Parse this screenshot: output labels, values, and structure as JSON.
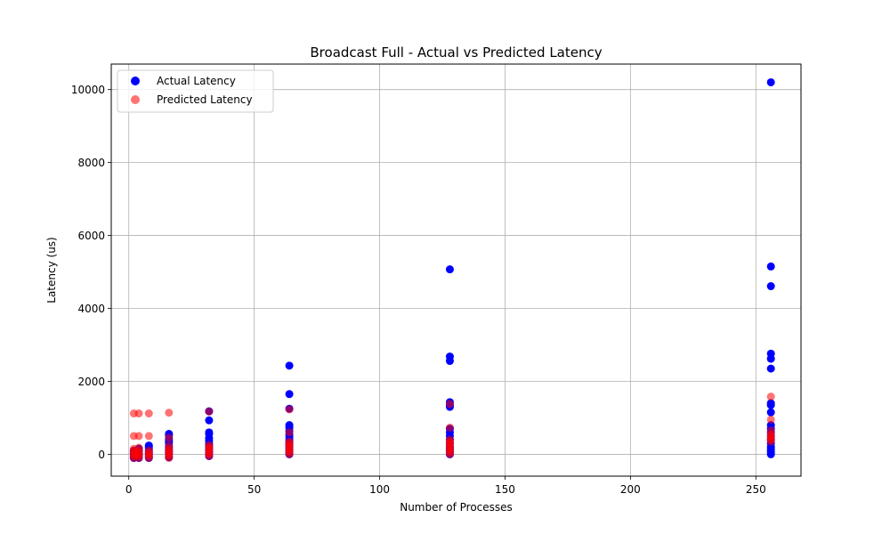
{
  "chart_data": {
    "type": "scatter",
    "title": "Broadcast Full - Actual vs Predicted Latency",
    "xlabel": "Number of Processes",
    "ylabel": "Latency (us)",
    "xlim": [
      -7,
      268
    ],
    "ylim": [
      -600,
      10700
    ],
    "xticks": [
      0,
      50,
      100,
      150,
      200,
      250
    ],
    "yticks": [
      0,
      2000,
      4000,
      6000,
      8000,
      10000
    ],
    "grid": true,
    "legend_position": "top-left",
    "series": [
      {
        "name": "Actual Latency",
        "color": "#0000ff",
        "opacity": 1.0,
        "points": [
          [
            2,
            -100
          ],
          [
            2,
            -50
          ],
          [
            2,
            0
          ],
          [
            2,
            30
          ],
          [
            2,
            60
          ],
          [
            2,
            100
          ],
          [
            4,
            -100
          ],
          [
            4,
            -50
          ],
          [
            4,
            0
          ],
          [
            4,
            50
          ],
          [
            4,
            100
          ],
          [
            4,
            150
          ],
          [
            8,
            -100
          ],
          [
            8,
            -50
          ],
          [
            8,
            0
          ],
          [
            8,
            50
          ],
          [
            8,
            100
          ],
          [
            8,
            150
          ],
          [
            8,
            200
          ],
          [
            8,
            240
          ],
          [
            16,
            -80
          ],
          [
            16,
            0
          ],
          [
            16,
            50
          ],
          [
            16,
            100
          ],
          [
            16,
            150
          ],
          [
            16,
            200
          ],
          [
            16,
            300
          ],
          [
            16,
            360
          ],
          [
            16,
            420
          ],
          [
            16,
            520
          ],
          [
            16,
            560
          ],
          [
            32,
            -50
          ],
          [
            32,
            0
          ],
          [
            32,
            50
          ],
          [
            32,
            100
          ],
          [
            32,
            150
          ],
          [
            32,
            200
          ],
          [
            32,
            250
          ],
          [
            32,
            300
          ],
          [
            32,
            380
          ],
          [
            32,
            450
          ],
          [
            32,
            560
          ],
          [
            32,
            600
          ],
          [
            32,
            930
          ],
          [
            32,
            1180
          ],
          [
            64,
            0
          ],
          [
            64,
            50
          ],
          [
            64,
            100
          ],
          [
            64,
            150
          ],
          [
            64,
            200
          ],
          [
            64,
            250
          ],
          [
            64,
            300
          ],
          [
            64,
            350
          ],
          [
            64,
            420
          ],
          [
            64,
            500
          ],
          [
            64,
            550
          ],
          [
            64,
            640
          ],
          [
            64,
            730
          ],
          [
            64,
            800
          ],
          [
            64,
            1250
          ],
          [
            64,
            1650
          ],
          [
            64,
            2430
          ],
          [
            128,
            0
          ],
          [
            128,
            50
          ],
          [
            128,
            100
          ],
          [
            128,
            150
          ],
          [
            128,
            200
          ],
          [
            128,
            300
          ],
          [
            128,
            400
          ],
          [
            128,
            500
          ],
          [
            128,
            600
          ],
          [
            128,
            700
          ],
          [
            128,
            1300
          ],
          [
            128,
            1350
          ],
          [
            128,
            1430
          ],
          [
            128,
            2560
          ],
          [
            128,
            2680
          ],
          [
            128,
            5070
          ],
          [
            256,
            0
          ],
          [
            256,
            50
          ],
          [
            256,
            100
          ],
          [
            256,
            150
          ],
          [
            256,
            200
          ],
          [
            256,
            300
          ],
          [
            256,
            400
          ],
          [
            256,
            500
          ],
          [
            256,
            600
          ],
          [
            256,
            700
          ],
          [
            256,
            800
          ],
          [
            256,
            1150
          ],
          [
            256,
            1350
          ],
          [
            256,
            1400
          ],
          [
            256,
            2350
          ],
          [
            256,
            2620
          ],
          [
            256,
            2760
          ],
          [
            256,
            4610
          ],
          [
            256,
            5150
          ],
          [
            256,
            10200
          ]
        ]
      },
      {
        "name": "Predicted Latency",
        "color": "#ff0000",
        "opacity": 0.55,
        "points": [
          [
            2,
            -100
          ],
          [
            2,
            -50
          ],
          [
            2,
            0
          ],
          [
            2,
            50
          ],
          [
            2,
            100
          ],
          [
            2,
            150
          ],
          [
            2,
            500
          ],
          [
            2,
            1120
          ],
          [
            4,
            -100
          ],
          [
            4,
            -50
          ],
          [
            4,
            0
          ],
          [
            4,
            50
          ],
          [
            4,
            100
          ],
          [
            4,
            180
          ],
          [
            4,
            500
          ],
          [
            4,
            1120
          ],
          [
            8,
            -100
          ],
          [
            8,
            -50
          ],
          [
            8,
            0
          ],
          [
            8,
            50
          ],
          [
            8,
            100
          ],
          [
            8,
            500
          ],
          [
            8,
            1120
          ],
          [
            16,
            -100
          ],
          [
            16,
            -50
          ],
          [
            16,
            0
          ],
          [
            16,
            50
          ],
          [
            16,
            100
          ],
          [
            16,
            150
          ],
          [
            16,
            230
          ],
          [
            16,
            450
          ],
          [
            16,
            1140
          ],
          [
            32,
            -50
          ],
          [
            32,
            0
          ],
          [
            32,
            50
          ],
          [
            32,
            100
          ],
          [
            32,
            150
          ],
          [
            32,
            200
          ],
          [
            32,
            250
          ],
          [
            32,
            1170
          ],
          [
            64,
            0
          ],
          [
            64,
            50
          ],
          [
            64,
            100
          ],
          [
            64,
            150
          ],
          [
            64,
            200
          ],
          [
            64,
            250
          ],
          [
            64,
            300
          ],
          [
            64,
            350
          ],
          [
            64,
            600
          ],
          [
            64,
            1230
          ],
          [
            128,
            0
          ],
          [
            128,
            50
          ],
          [
            128,
            100
          ],
          [
            128,
            150
          ],
          [
            128,
            200
          ],
          [
            128,
            250
          ],
          [
            128,
            300
          ],
          [
            128,
            350
          ],
          [
            128,
            400
          ],
          [
            128,
            730
          ],
          [
            128,
            1380
          ],
          [
            256,
            350
          ],
          [
            256,
            400
          ],
          [
            256,
            450
          ],
          [
            256,
            500
          ],
          [
            256,
            550
          ],
          [
            256,
            650
          ],
          [
            256,
            950
          ],
          [
            256,
            1580
          ]
        ]
      }
    ]
  }
}
